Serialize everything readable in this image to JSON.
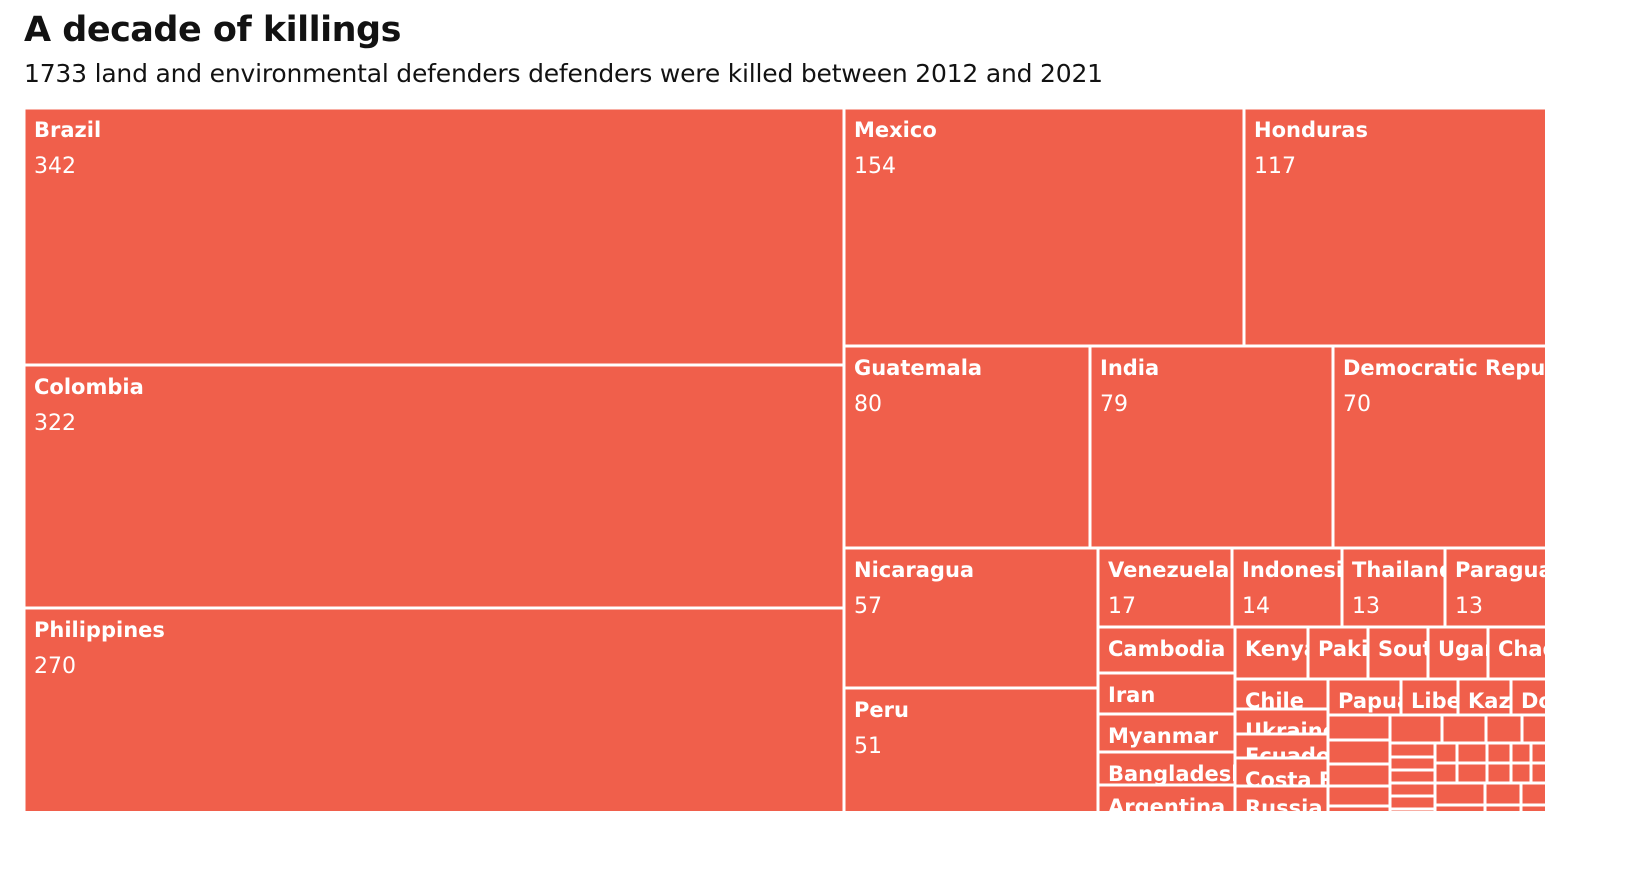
{
  "header": {
    "title": "A decade of killings",
    "subtitle": "1733 land and environmental defenders defenders were killed between 2012 and 2021"
  },
  "chart_data": {
    "type": "treemap",
    "title": "A decade of killings",
    "subtitle": "1733 land and environmental defenders defenders were killed between 2012 and 2021",
    "color": "#F05F4B",
    "border_color": "#ffffff",
    "visible_labels": [
      {
        "name": "Brazil",
        "value": 342
      },
      {
        "name": "Colombia",
        "value": 322
      },
      {
        "name": "Philippines",
        "value": 270
      },
      {
        "name": "Mexico",
        "value": 154
      },
      {
        "name": "Honduras",
        "value": 117
      },
      {
        "name": "Guatemala",
        "value": 80
      },
      {
        "name": "India",
        "value": 79
      },
      {
        "name": "Democratic Republi",
        "value": 70
      },
      {
        "name": "Nicaragua",
        "value": 57
      },
      {
        "name": "Peru",
        "value": 51
      },
      {
        "name": "Venezuela",
        "value": 17
      },
      {
        "name": "Indonesia",
        "value": 14
      },
      {
        "name": "Thailand",
        "value": 13
      },
      {
        "name": "Paraguay",
        "value": 13
      },
      {
        "name": "Cambodia"
      },
      {
        "name": "Iran"
      },
      {
        "name": "Myanmar"
      },
      {
        "name": "Bangladesh"
      },
      {
        "name": "Argentina"
      },
      {
        "name": "Kenya"
      },
      {
        "name": "Pakis"
      },
      {
        "name": "Sout"
      },
      {
        "name": "Ugan"
      },
      {
        "name": "Chad"
      },
      {
        "name": "Chile"
      },
      {
        "name": "Ukraine"
      },
      {
        "name": "Ecuador"
      },
      {
        "name": "Costa R"
      },
      {
        "name": "Russia"
      },
      {
        "name": "Papua"
      },
      {
        "name": "Libe"
      },
      {
        "name": "Kaza"
      },
      {
        "name": "Do"
      }
    ]
  }
}
